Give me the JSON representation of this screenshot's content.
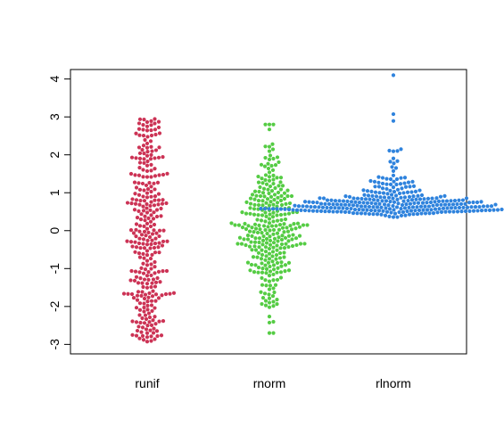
{
  "chart_data": {
    "type": "scatter",
    "style": "beeswarm",
    "title": "",
    "xlabel": "",
    "ylabel": "",
    "ylim": [
      -3.25,
      4.25
    ],
    "yticks": [
      -3,
      -2,
      -1,
      0,
      1,
      2,
      3,
      4
    ],
    "ytick_labels": [
      "-3",
      "-2",
      "-1",
      "0",
      "1",
      "2",
      "3",
      "4"
    ],
    "categories": [
      "runif",
      "rnorm",
      "rlnorm"
    ],
    "grid": false,
    "legend": "none",
    "series": [
      {
        "category": "runif",
        "distribution": "uniform",
        "color": "#CC3355",
        "n": 300,
        "min": -2.95,
        "max": 2.95
      },
      {
        "category": "rnorm",
        "distribution": "normal",
        "color": "#55CC44",
        "n": 300,
        "mean": 0.05,
        "sd": 1.0,
        "min": -2.7,
        "max": 2.8
      },
      {
        "category": "rlnorm",
        "distribution": "lognormal",
        "color": "#2F83DD",
        "n": 300,
        "min": 0.32,
        "max": 4.1
      }
    ]
  }
}
